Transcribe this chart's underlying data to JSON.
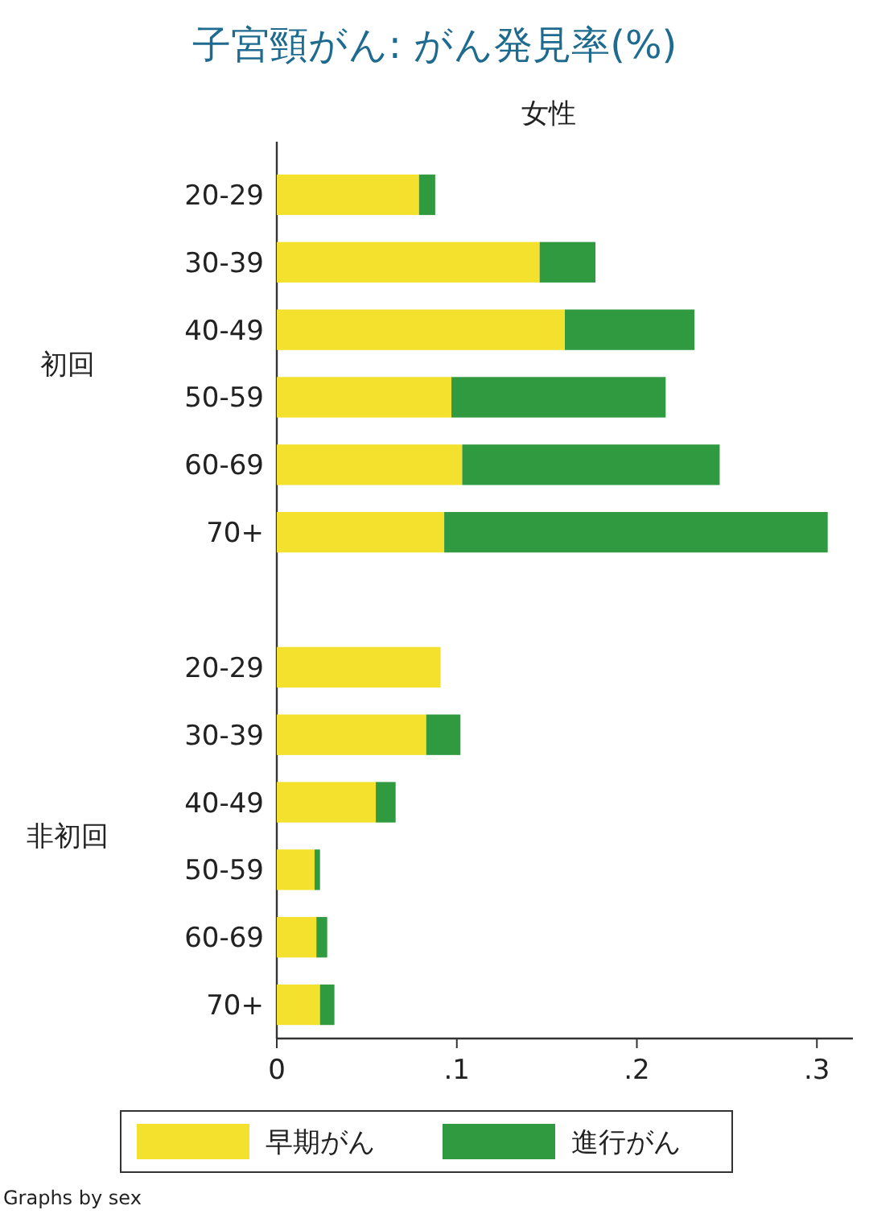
{
  "chart_data": {
    "type": "bar",
    "orientation": "horizontal",
    "stacked": true,
    "title": "子宮頸がん: がん発見率(%)",
    "subtitle": "女性",
    "categories": [
      "20-29",
      "30-39",
      "40-49",
      "50-59",
      "60-69",
      "70+",
      null,
      "20-29",
      "30-39",
      "40-49",
      "50-59",
      "60-69",
      "70+"
    ],
    "xlim": [
      0,
      0.32
    ],
    "xticks": [
      {
        "value": 0,
        "label": "0"
      },
      {
        "value": 0.1,
        "label": ".1"
      },
      {
        "value": 0.2,
        "label": ".2"
      },
      {
        "value": 0.3,
        "label": ".3"
      }
    ],
    "grid": false,
    "legend": "bottom",
    "annotations": [
      "初回",
      "非初回",
      "Graphs by sex"
    ],
    "series": [
      {
        "name": "早期がん",
        "color": "#f3e12e",
        "values": [
          0.079,
          0.146,
          0.16,
          0.097,
          0.103,
          0.093,
          null,
          0.091,
          0.083,
          0.055,
          0.021,
          0.022,
          0.024
        ]
      },
      {
        "name": "進行がん",
        "color": "#2f9a3f",
        "values": [
          0.009,
          0.031,
          0.072,
          0.119,
          0.143,
          0.213,
          null,
          0,
          0.019,
          0.011,
          0.003,
          0.006,
          0.008
        ]
      }
    ]
  }
}
